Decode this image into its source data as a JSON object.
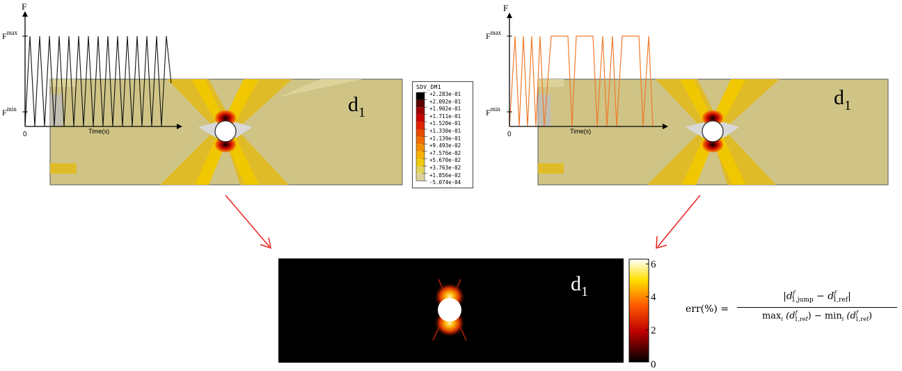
{
  "left_panel": {
    "label": "d1",
    "label_main": "d",
    "label_sub": "1",
    "graph": {
      "y_axis": "F",
      "y_max_main": "F",
      "y_max_sup": "max",
      "y_min_main": "F",
      "y_min_sup": "min",
      "origin": "0",
      "x_axis": "Time(s)"
    }
  },
  "right_panel": {
    "label": "d1",
    "label_main": "d",
    "label_sub": "1",
    "graph": {
      "y_axis": "F",
      "y_max_main": "F",
      "y_max_sup": "max",
      "y_min_main": "F",
      "y_min_sup": "min",
      "origin": "0",
      "x_axis": "Time(s)"
    }
  },
  "legend": {
    "title": "SDV_DM1",
    "values": [
      "+2.283e-01",
      "+2.092e-01",
      "+1.902e-01",
      "+1.711e-01",
      "+1.520e-01",
      "+1.330e-01",
      "+1.139e-01",
      "+9.493e-02",
      "+7.576e-02",
      "+5.670e-02",
      "+3.763e-02",
      "+1.856e-02",
      "-5.074e-04"
    ],
    "colors": [
      "#000000",
      "#5a0000",
      "#9a0000",
      "#c80000",
      "#e02200",
      "#ea4a00",
      "#ef6d00",
      "#f39000",
      "#f6b000",
      "#f0cc10",
      "#e2d45a",
      "#ddd39a"
    ]
  },
  "error_map": {
    "label": "d1",
    "label_main": "d",
    "label_sub": "1",
    "colorbar_ticks": [
      "6",
      "4",
      "2",
      "0"
    ]
  },
  "formula": {
    "lhs": "err(%) =",
    "numerator": "|d",
    "numerator_parts": [
      "|d",
      "f",
      "1,jump",
      "− d",
      "f",
      "1,ref",
      "|"
    ],
    "denominator_parts": [
      "max",
      "i",
      "(d",
      "f",
      "1,ref",
      ") − min",
      "i",
      "(d",
      "f",
      "1,ref",
      ")"
    ]
  },
  "colors": {
    "field": "#cfc486",
    "band": "#e0bb28",
    "band_inner": "#f0c700",
    "arrow": "#e8201c",
    "orange_signal": "#f07a2a"
  }
}
